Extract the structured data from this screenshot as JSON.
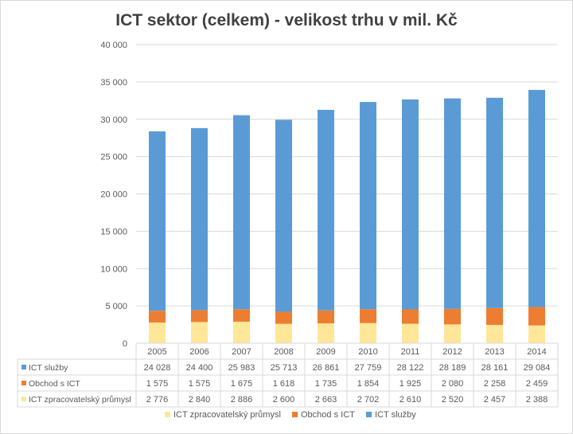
{
  "chart_data": {
    "type": "bar",
    "stacked": true,
    "title": "ICT sektor (celkem) - velikost trhu v mil. Kč",
    "categories": [
      "2005",
      "2006",
      "2007",
      "2008",
      "2009",
      "2010",
      "2011",
      "2012",
      "2013",
      "2014"
    ],
    "ylim": [
      0,
      40000
    ],
    "yticks": [
      0,
      5000,
      10000,
      15000,
      20000,
      25000,
      30000,
      35000,
      40000
    ],
    "ytick_labels": [
      "0",
      "5 000",
      "10 000",
      "15 000",
      "20 000",
      "25 000",
      "30 000",
      "35 000",
      "40 000"
    ],
    "grid": true,
    "legend_position": "bottom",
    "data_table": true,
    "series": [
      {
        "name": "ICT zpracovatelský průmysl",
        "color": "#ffe699",
        "values": [
          2776,
          2840,
          2886,
          2600,
          2663,
          2702,
          2610,
          2520,
          2457,
          2388
        ],
        "labels": [
          "2 776",
          "2 840",
          "2 886",
          "2 600",
          "2 663",
          "2 702",
          "2 610",
          "2 520",
          "2 457",
          "2 388"
        ]
      },
      {
        "name": "Obchod s ICT",
        "color": "#ed7d31",
        "values": [
          1575,
          1575,
          1675,
          1618,
          1735,
          1854,
          1925,
          2080,
          2258,
          2459
        ],
        "labels": [
          "1 575",
          "1 575",
          "1 675",
          "1 618",
          "1 735",
          "1 854",
          "1 925",
          "2 080",
          "2 258",
          "2 459"
        ]
      },
      {
        "name": "ICT služby",
        "color": "#5b9bd5",
        "values": [
          24028,
          24400,
          25983,
          25713,
          26861,
          27759,
          28122,
          28189,
          28161,
          29084
        ],
        "labels": [
          "24 028",
          "24 400",
          "25 983",
          "25 713",
          "26 861",
          "27 759",
          "28 122",
          "28 189",
          "28 161",
          "29 084"
        ]
      }
    ]
  }
}
